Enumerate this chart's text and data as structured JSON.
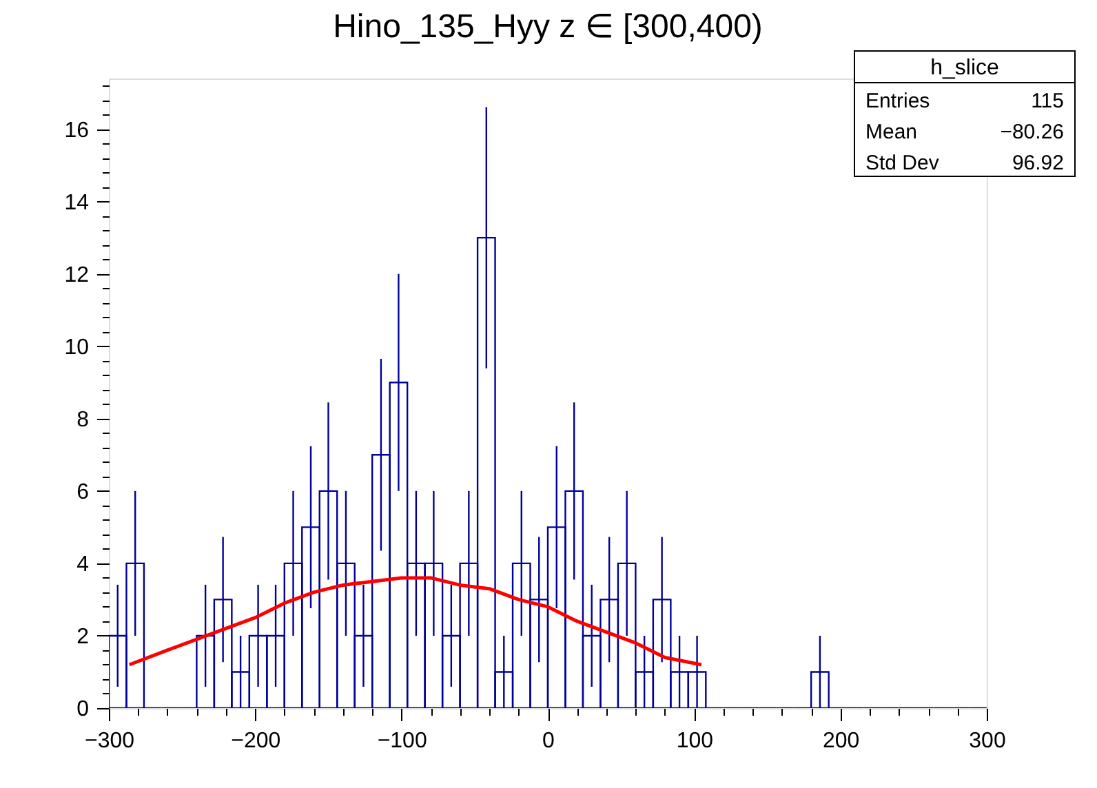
{
  "chart_data": {
    "type": "histogram",
    "title": "Hino_135_Hyy z  ∈ [300,400)",
    "bins": [
      -300,
      -288,
      -276,
      -264,
      -252,
      -240,
      -228,
      -216,
      -204,
      -192,
      -180,
      -168,
      -156,
      -144,
      -132,
      -120,
      -108,
      -96,
      -84,
      -72,
      -60,
      -48,
      -36,
      -24,
      -12,
      0,
      12,
      24,
      36,
      48,
      60,
      72,
      84,
      96,
      108,
      120,
      132,
      144,
      156,
      168,
      180,
      192,
      204,
      216,
      228,
      240,
      252,
      264,
      276,
      288,
      300
    ],
    "series": [
      {
        "color": "#000099",
        "values": [
          2,
          4,
          0,
          0,
          0,
          2,
          3,
          1,
          2,
          2,
          4,
          5,
          6,
          4,
          2,
          7,
          9,
          4,
          4,
          2,
          4,
          13,
          1,
          4,
          3,
          5,
          6,
          2,
          3,
          4,
          1,
          3,
          1,
          1,
          0,
          0,
          0,
          0,
          0,
          0,
          1,
          0,
          0,
          0,
          0,
          0,
          0,
          0,
          0,
          0
        ],
        "errors": [
          1.41,
          2,
          null,
          null,
          null,
          1.41,
          1.73,
          1,
          1.41,
          1.41,
          2,
          2.24,
          2.45,
          2,
          1.41,
          2.65,
          3,
          2,
          2,
          1.41,
          2,
          3.61,
          1,
          2,
          1.73,
          2.24,
          2.45,
          1.41,
          1.73,
          2,
          1,
          1.73,
          1,
          1,
          null,
          null,
          null,
          null,
          null,
          null,
          1,
          null,
          null,
          null,
          null,
          null,
          null,
          null,
          null,
          null
        ]
      },
      {
        "type": "line",
        "color": "#ff0000",
        "x": [
          -286,
          -260,
          -240,
          -220,
          -200,
          -180,
          -160,
          -140,
          -120,
          -100,
          -80,
          -60,
          -40,
          -20,
          0,
          20,
          40,
          60,
          80,
          105
        ],
        "values": [
          1.2,
          1.6,
          1.9,
          2.2,
          2.5,
          2.9,
          3.2,
          3.4,
          3.5,
          3.6,
          3.6,
          3.4,
          3.3,
          3.0,
          2.8,
          2.4,
          2.1,
          1.8,
          1.4,
          1.2
        ]
      }
    ],
    "xlim": [
      -300,
      300
    ],
    "xticks": [
      -300,
      {
        "value": -280,
        "label": null
      },
      {
        "value": -260,
        "label": null
      },
      {
        "value": -240,
        "label": null
      },
      {
        "value": -220,
        "label": null
      },
      -200,
      {
        "value": -180,
        "label": null
      },
      {
        "value": -160,
        "label": null
      },
      {
        "value": -140,
        "label": null
      },
      {
        "value": -120,
        "label": null
      },
      -100,
      {
        "value": -80,
        "label": null
      },
      {
        "value": -60,
        "label": null
      },
      {
        "value": -40,
        "label": null
      },
      {
        "value": -20,
        "label": null
      },
      0,
      {
        "value": 20,
        "label": null
      },
      {
        "value": 40,
        "label": null
      },
      {
        "value": 60,
        "label": null
      },
      {
        "value": 80,
        "label": null
      },
      100,
      {
        "value": 120,
        "label": null
      },
      {
        "value": 140,
        "label": null
      },
      {
        "value": 160,
        "label": null
      },
      {
        "value": 180,
        "label": null
      },
      200,
      {
        "value": 220,
        "label": null
      },
      {
        "value": 240,
        "label": null
      },
      {
        "value": 260,
        "label": null
      },
      {
        "value": 280,
        "label": null
      },
      300
    ],
    "ylim": [
      0,
      17.4
    ],
    "yticks": [
      0,
      {
        "value": 0.4,
        "label": null
      },
      {
        "value": 0.8,
        "label": null
      },
      {
        "value": 1.2,
        "label": null
      },
      {
        "value": 1.6,
        "label": null
      },
      2,
      {
        "value": 2.4,
        "label": null
      },
      {
        "value": 2.8,
        "label": null
      },
      {
        "value": 3.2,
        "label": null
      },
      {
        "value": 3.6,
        "label": null
      },
      4,
      {
        "value": 4.4,
        "label": null
      },
      {
        "value": 4.8,
        "label": null
      },
      {
        "value": 5.2,
        "label": null
      },
      {
        "value": 5.6,
        "label": null
      },
      6,
      {
        "value": 6.4,
        "label": null
      },
      {
        "value": 6.8,
        "label": null
      },
      {
        "value": 7.2,
        "label": null
      },
      {
        "value": 7.6,
        "label": null
      },
      8,
      {
        "value": 8.4,
        "label": null
      },
      {
        "value": 8.8,
        "label": null
      },
      {
        "value": 9.2,
        "label": null
      },
      {
        "value": 9.6,
        "label": null
      },
      10,
      {
        "value": 10.4,
        "label": null
      },
      {
        "value": 10.8,
        "label": null
      },
      {
        "value": 11.2,
        "label": null
      },
      {
        "value": 11.6,
        "label": null
      },
      12,
      {
        "value": 12.4,
        "label": null
      },
      {
        "value": 12.8,
        "label": null
      },
      {
        "value": 13.2,
        "label": null
      },
      {
        "value": 13.6,
        "label": null
      },
      14,
      {
        "value": 14.4,
        "label": null
      },
      {
        "value": 14.8,
        "label": null
      },
      {
        "value": 15.2,
        "label": null
      },
      {
        "value": 15.6,
        "label": null
      },
      16,
      {
        "value": 16.4,
        "label": null
      },
      {
        "value": 16.8,
        "label": null
      },
      {
        "value": 17.2,
        "label": null
      }
    ],
    "grid": false,
    "annotations": [
      "h_slice",
      "Entries",
      "115",
      "Mean",
      "−80.26",
      "Std Dev",
      "96.92"
    ]
  }
}
